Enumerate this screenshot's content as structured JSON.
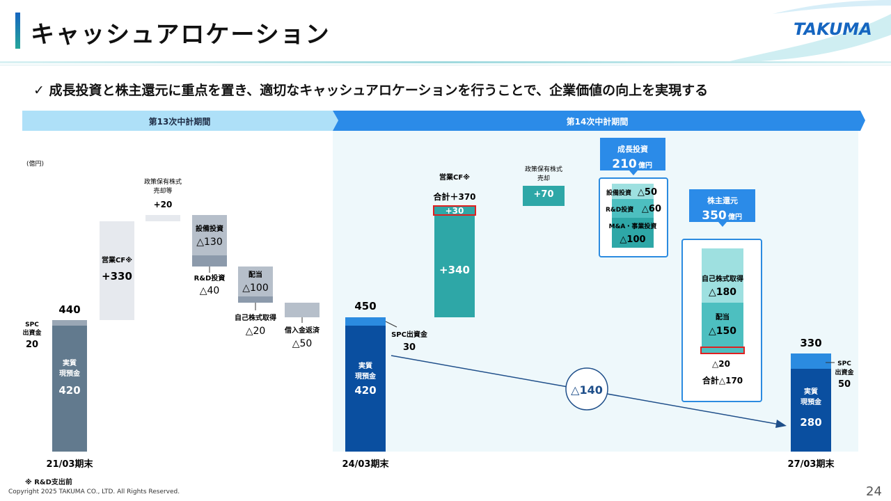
{
  "header": {
    "title": "キャッシュアロケーション",
    "logo": "TAKUMA",
    "lead": "✓  成長投資と株主還元に重点を置き、適切なキャッシュアロケーションを行うことで、企業価値の向上を実現する"
  },
  "footer": {
    "copyright": "Copyright  2025 TAKUMA CO., LTD.  All Rights Reserved.",
    "page": "24",
    "note": "※ R&D支出前"
  },
  "colors": {
    "base_gray": "#627a8e",
    "light_gray": "#e6e9ee",
    "mid_gray": "#b6bfca",
    "navy": "#0a4fa0",
    "blue": "#2b8be0",
    "teal": "#2ea7a7",
    "teal_light": "#9ee0e0",
    "teal_mid": "#4dbfc0",
    "banner1": "#aee0f8",
    "banner2": "#2b8be8",
    "panel": "#eef8fb",
    "accent_red": "#e02020"
  },
  "chart_data": {
    "type": "waterfall",
    "unit": "(億円)",
    "ylim": [
      0,
      520
    ],
    "periods": [
      {
        "label": "第13次中計期間"
      },
      {
        "label": "第14次中計期間"
      }
    ],
    "period1": {
      "start": {
        "category": "21/03期末",
        "total": 440,
        "cash_label": "実質\n現預金",
        "cash": 420,
        "spc_label": "SPC\n出資金",
        "spc": 20
      },
      "steps": [
        {
          "label": "営業CF※",
          "value": 330
        },
        {
          "label": "政策保有株式\n売却等",
          "value": 20
        },
        {
          "label": "設備投資",
          "value": -130,
          "sub_label": "R&D投資",
          "sub_value": -40
        },
        {
          "label": "配当",
          "value": -100,
          "sub_label": "自己株式取得",
          "sub_value": -20
        },
        {
          "label": "借入金返済",
          "value": -50
        }
      ]
    },
    "period2": {
      "start": {
        "category": "24/03期末",
        "total": 450,
        "cash_label": "実質\n現預金",
        "cash": 420,
        "spc_label": "SPC出資金",
        "spc": 30
      },
      "operating_cf": {
        "label": "営業CF※",
        "total_label": "合計＋370",
        "parts": [
          340,
          30
        ]
      },
      "policy_sale": {
        "label": "政策保有株式\n売却",
        "value": 70
      },
      "growth": {
        "title": "成長投資",
        "amount": "210",
        "unit": "億円",
        "items": [
          {
            "label": "設備投資",
            "value": -50
          },
          {
            "label": "R&D投資",
            "value": -60
          },
          {
            "label": "M&A・事業投資",
            "value": -100
          }
        ]
      },
      "return": {
        "title": "株主還元",
        "amount": "350",
        "unit": "億円",
        "items": [
          {
            "label": "自己株式取得",
            "value": -180
          },
          {
            "label": "配当",
            "value": -150,
            "extra": -20
          }
        ],
        "subtotal_label": "合計△170"
      },
      "change": -140,
      "end": {
        "category": "27/03期末",
        "total": 330,
        "cash_label": "実質\n現預金",
        "cash": 280,
        "spc_label": "SPC\n出資金",
        "spc": 50
      }
    }
  }
}
